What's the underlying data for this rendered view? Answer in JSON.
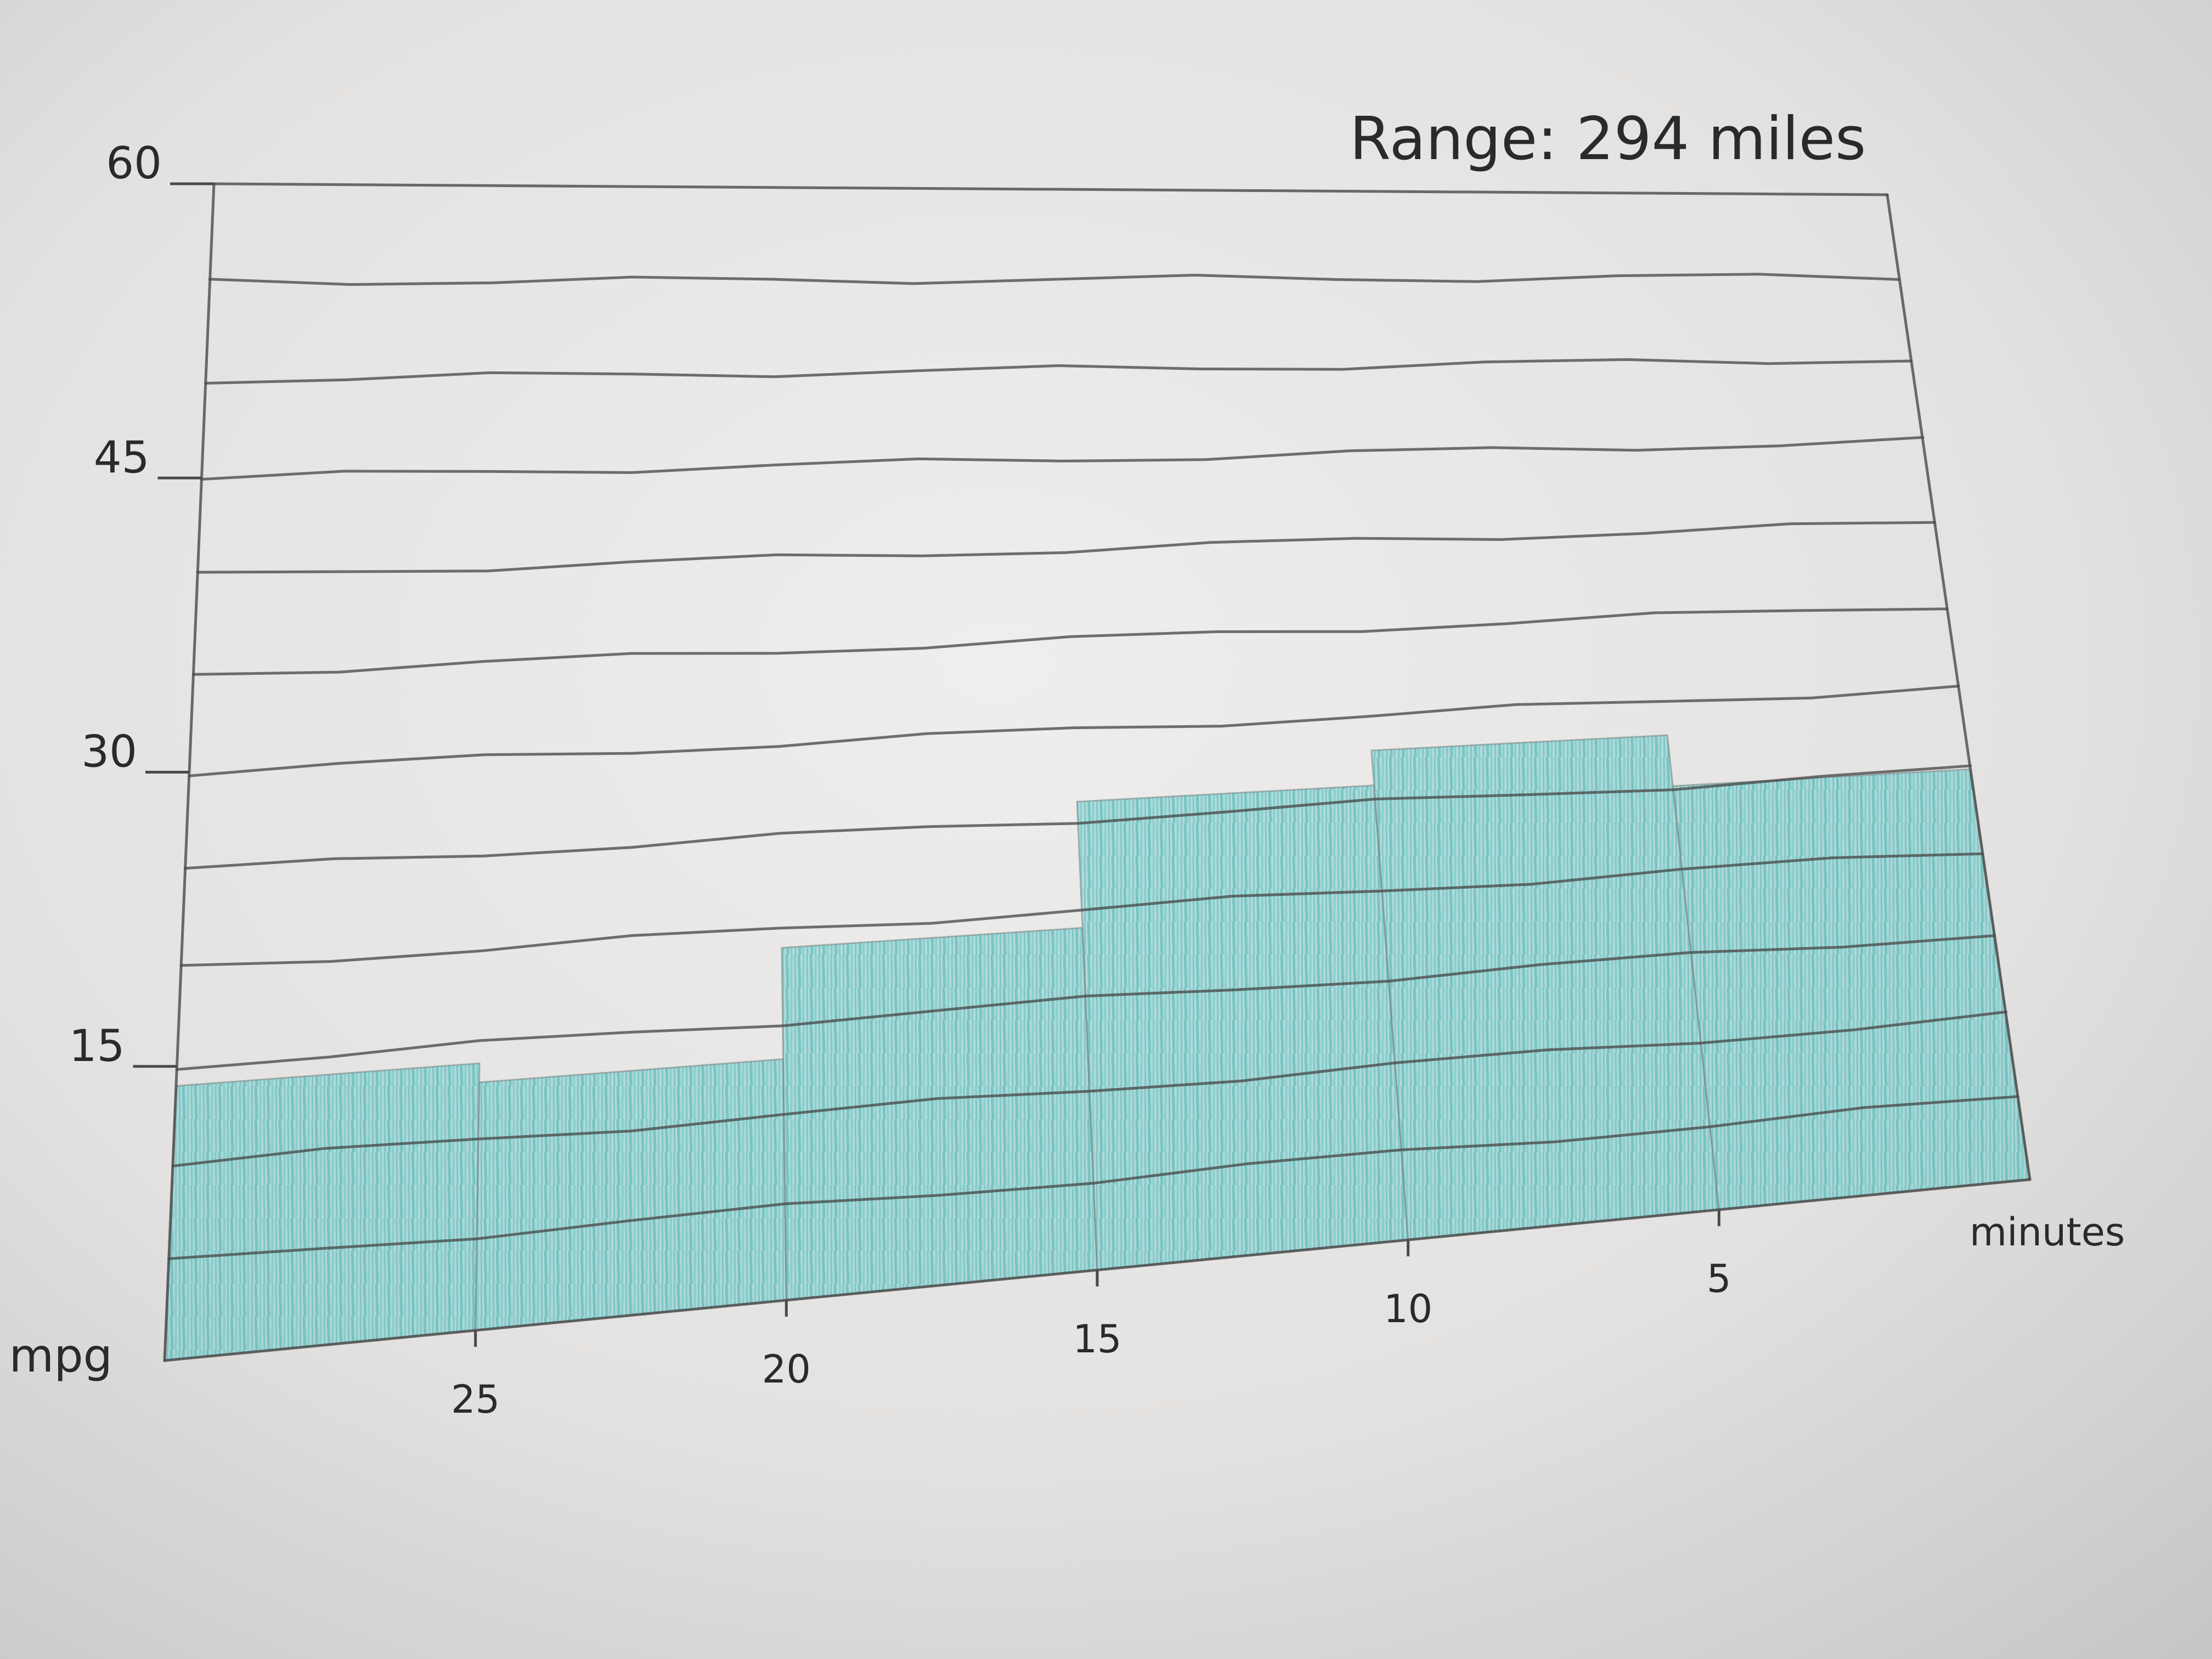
{
  "chart_data": {
    "type": "bar",
    "title": "Range: 294 miles",
    "xlabel": "minutes",
    "ylabel": "mpg",
    "x_ticks": [
      "25",
      "20",
      "15",
      "10",
      "5"
    ],
    "y_ticks": [
      15,
      30,
      45,
      60
    ],
    "ylim": [
      0,
      60
    ],
    "xlim": [
      30,
      0
    ],
    "grid": true,
    "bars": [
      {
        "from": 30,
        "to": 25,
        "value": 14
      },
      {
        "from": 25,
        "to": 20,
        "value": 13
      },
      {
        "from": 20,
        "to": 15,
        "value": 19
      },
      {
        "from": 15,
        "to": 10,
        "value": 26
      },
      {
        "from": 10,
        "to": 5,
        "value": 28
      },
      {
        "from": 5,
        "to": 0,
        "value": 25
      }
    ],
    "bar_color": "#7fcfcf"
  }
}
